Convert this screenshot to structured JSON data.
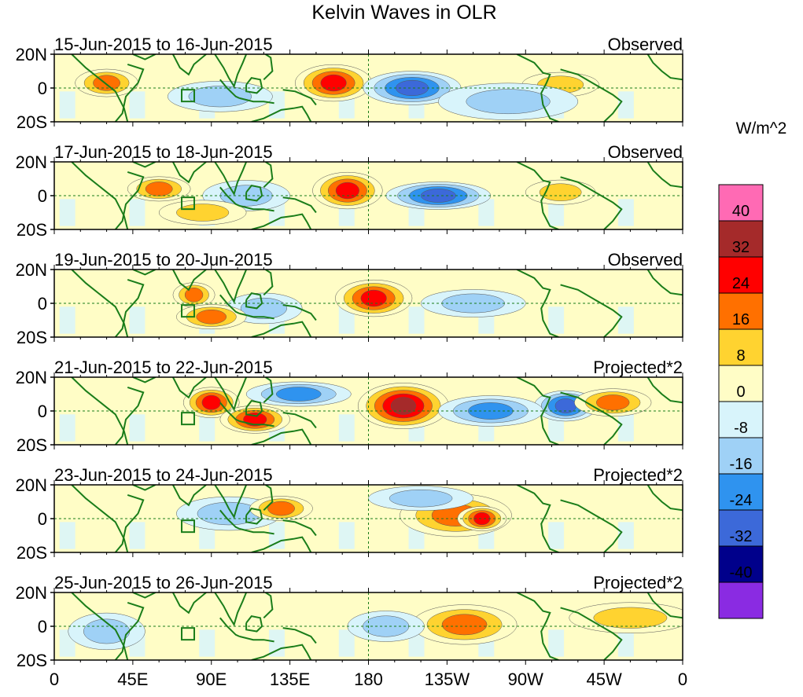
{
  "chart_data": {
    "type": "heatmap",
    "title": "Kelvin Waves in OLR",
    "units": "W/m^2",
    "y_ticks": [
      "20N",
      "0",
      "20S"
    ],
    "x_ticks": [
      "0",
      "45E",
      "90E",
      "135E",
      "180",
      "135W",
      "90W",
      "45W",
      "0"
    ],
    "x_range_deg": [
      0,
      360
    ],
    "y_range_deg": [
      -20,
      20
    ],
    "levels": [
      40,
      32,
      24,
      16,
      8,
      0,
      -8,
      -16,
      -24,
      -32,
      -40
    ],
    "colors": [
      "#ff6ab4",
      "#a52a2a",
      "#ff0000",
      "#ff7000",
      "#ffd330",
      "#fffdc6",
      "#d8f4fb",
      "#9fd1f6",
      "#2f93ef",
      "#3c69d9",
      "#00008b",
      "#8a2be2"
    ],
    "panels": [
      {
        "date_label": "15-Jun-2015 to 16-Jun-2015",
        "type_label": "Observed",
        "blobs": [
          {
            "lon": 160,
            "lat": 3,
            "w": 22,
            "h": 10,
            "v": 24
          },
          {
            "lon": 205,
            "lat": 0,
            "w": 28,
            "h": 9,
            "v": -24
          },
          {
            "lon": 30,
            "lat": 3,
            "w": 18,
            "h": 7,
            "v": 16
          },
          {
            "lon": 290,
            "lat": 2,
            "w": 22,
            "h": 6,
            "v": 8
          },
          {
            "lon": 95,
            "lat": -5,
            "w": 30,
            "h": 8,
            "v": -8
          },
          {
            "lon": 260,
            "lat": -8,
            "w": 40,
            "h": 10,
            "v": -8
          }
        ]
      },
      {
        "date_label": "17-Jun-2015 to 18-Jun-2015",
        "type_label": "Observed",
        "blobs": [
          {
            "lon": 168,
            "lat": 3,
            "w": 20,
            "h": 10,
            "v": 24
          },
          {
            "lon": 220,
            "lat": 0,
            "w": 30,
            "h": 7,
            "v": -24
          },
          {
            "lon": 60,
            "lat": 4,
            "w": 18,
            "h": 6,
            "v": 16
          },
          {
            "lon": 110,
            "lat": 0,
            "w": 25,
            "h": 8,
            "v": -8
          },
          {
            "lon": 290,
            "lat": 2,
            "w": 20,
            "h": 6,
            "v": 8
          },
          {
            "lon": 85,
            "lat": -10,
            "w": 25,
            "h": 6,
            "v": 8
          }
        ]
      },
      {
        "date_label": "19-Jun-2015 to 20-Jun-2015",
        "type_label": "Observed",
        "blobs": [
          {
            "lon": 183,
            "lat": 3,
            "w": 22,
            "h": 10,
            "v": 24
          },
          {
            "lon": 80,
            "lat": 5,
            "w": 12,
            "h": 6,
            "v": 16
          },
          {
            "lon": 120,
            "lat": -3,
            "w": 22,
            "h": 8,
            "v": -8
          },
          {
            "lon": 240,
            "lat": 0,
            "w": 30,
            "h": 7,
            "v": -8
          },
          {
            "lon": 90,
            "lat": -8,
            "w": 20,
            "h": 6,
            "v": 16
          }
        ]
      },
      {
        "date_label": "21-Jun-2015 to 22-Jun-2015",
        "type_label": "Projected*2",
        "blobs": [
          {
            "lon": 200,
            "lat": 3,
            "w": 26,
            "h": 13,
            "v": 32
          },
          {
            "lon": 90,
            "lat": 5,
            "w": 16,
            "h": 8,
            "v": 24
          },
          {
            "lon": 115,
            "lat": -5,
            "w": 20,
            "h": 7,
            "v": 24
          },
          {
            "lon": 293,
            "lat": 3,
            "w": 18,
            "h": 8,
            "v": -24
          },
          {
            "lon": 140,
            "lat": 10,
            "w": 30,
            "h": 6,
            "v": -16
          },
          {
            "lon": 320,
            "lat": 5,
            "w": 22,
            "h": 7,
            "v": 16
          },
          {
            "lon": 250,
            "lat": 0,
            "w": 30,
            "h": 8,
            "v": -16
          }
        ]
      },
      {
        "date_label": "23-Jun-2015 to 24-Jun-2015",
        "type_label": "Projected*2",
        "blobs": [
          {
            "lon": 230,
            "lat": 2,
            "w": 32,
            "h": 12,
            "v": 16
          },
          {
            "lon": 245,
            "lat": 0,
            "w": 14,
            "h": 6,
            "v": 24
          },
          {
            "lon": 100,
            "lat": 3,
            "w": 30,
            "h": 9,
            "v": -8
          },
          {
            "lon": 130,
            "lat": 6,
            "w": 18,
            "h": 6,
            "v": 16
          },
          {
            "lon": 210,
            "lat": 12,
            "w": 30,
            "h": 6,
            "v": -8
          }
        ]
      },
      {
        "date_label": "25-Jun-2015 to 26-Jun-2015",
        "type_label": "Projected*2",
        "blobs": [
          {
            "lon": 235,
            "lat": 1,
            "w": 30,
            "h": 11,
            "v": 16
          },
          {
            "lon": 190,
            "lat": 0,
            "w": 22,
            "h": 8,
            "v": -8
          },
          {
            "lon": 30,
            "lat": -3,
            "w": 22,
            "h": 10,
            "v": -8
          },
          {
            "lon": 330,
            "lat": 5,
            "w": 35,
            "h": 8,
            "v": 8
          }
        ]
      }
    ]
  }
}
